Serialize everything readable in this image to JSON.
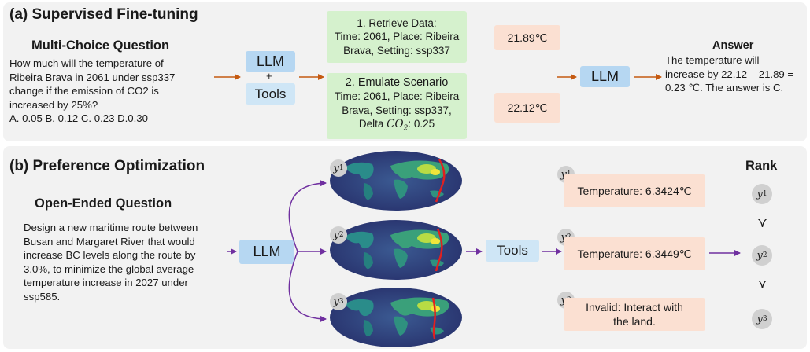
{
  "sft": {
    "title": "(a) Supervised Fine-tuning",
    "question_heading": "Multi-Choice Question",
    "question_lines": [
      "How much will the temperature of",
      "Ribeira Brava in 2061 under ssp337",
      "change if the emission of CO2 is",
      "increased by 25%?",
      "A. 0.05 B. 0.12 C. 0.23 D.0.30"
    ],
    "llm_label": "LLM",
    "plus": "+",
    "tools_label": "Tools",
    "retrieve": {
      "title": "1. Retrieve Data:",
      "line1": "Time: 2061, Place: Ribeira",
      "line2": "Brava, Setting: ssp337"
    },
    "emulate": {
      "title": "2. Emulate Scenario",
      "line1": "Time: 2061, Place: Ribeira",
      "line2": "Brava, Setting: ssp337,",
      "line3_prefix": "Delta ",
      "line3_var": "CO",
      "line3_sub": "2",
      "line3_suffix": ": 0.25"
    },
    "value1": "21.89℃",
    "value2": "22.12℃",
    "llm2_label": "LLM",
    "answer_heading": "Answer",
    "answer_lines": [
      "The temperature will",
      "increase by 22.12 – 21.89 =",
      "0.23 ℃. The answer is C."
    ]
  },
  "po": {
    "title": "(b) Preference Optimization",
    "question_heading": "Open-Ended Question",
    "question_lines": [
      "Design a new maritime route between",
      "Busan and Margaret River that would",
      "increase BC levels along the route by",
      "3.0%, to minimize the global average",
      "temperature increase in 2027 under",
      "ssp585."
    ],
    "llm_label": "LLM",
    "tools_label": "Tools",
    "rank_heading": "Rank",
    "candidates": [
      {
        "var": "y",
        "sub": "1",
        "result": "Temperature: 6.3424℃"
      },
      {
        "var": "y",
        "sub": "2",
        "result": "Temperature: 6.3449℃"
      },
      {
        "var": "y",
        "sub": "3",
        "result": "Invalid: Interact with the land."
      }
    ],
    "rank_order": [
      {
        "var": "y",
        "sub": "1"
      },
      {
        "var": "y",
        "sub": "2"
      },
      {
        "var": "y",
        "sub": "3"
      }
    ],
    "rank_symbol": "≻"
  },
  "colors": {
    "panel_bg": "#f2f2f2",
    "llm_box": "#b6d7f2",
    "tools_box": "#cfe6f6",
    "green_box": "#d5f1cd",
    "orange_box": "#fbe0d2",
    "arrow_orange": "#c55a11",
    "arrow_purple": "#7030a0",
    "route_red": "#e02020"
  }
}
